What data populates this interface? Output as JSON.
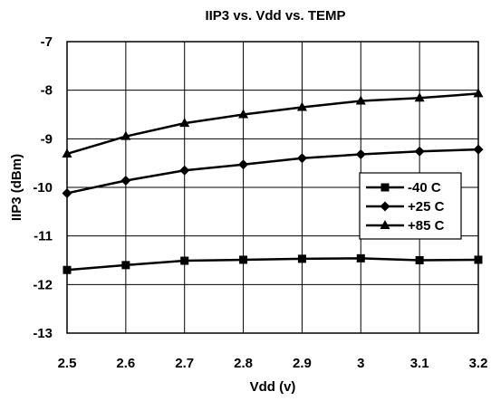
{
  "chart_data": {
    "type": "line",
    "title": "IIP3 vs. Vdd vs. TEMP",
    "xlabel": "Vdd (v)",
    "ylabel": "IIP3 (dBm)",
    "xlim": [
      2.5,
      3.2
    ],
    "ylim": [
      -13,
      -7
    ],
    "x_ticks": [
      "2.5",
      "2.6",
      "2.7",
      "2.8",
      "2.9",
      "3",
      "3.1",
      "3.2"
    ],
    "y_ticks": [
      "-7",
      "-8",
      "-9",
      "-10",
      "-11",
      "-12",
      "-13"
    ],
    "grid": true,
    "legend_position": "right",
    "x": [
      2.5,
      2.6,
      2.7,
      2.8,
      2.9,
      3.0,
      3.1,
      3.2
    ],
    "series": [
      {
        "name": "-40 C",
        "marker": "square",
        "values": [
          -11.7,
          -11.6,
          -11.51,
          -11.49,
          -11.47,
          -11.46,
          -11.5,
          -11.49
        ]
      },
      {
        "name": "+25 C",
        "marker": "diamond",
        "values": [
          -10.12,
          -9.86,
          -9.65,
          -9.53,
          -9.4,
          -9.32,
          -9.26,
          -9.22
        ]
      },
      {
        "name": "+85 C",
        "marker": "triangle",
        "values": [
          -9.31,
          -8.95,
          -8.68,
          -8.5,
          -8.35,
          -8.22,
          -8.16,
          -8.07
        ]
      }
    ],
    "colors": {
      "line": "#000000",
      "grid": "#000000",
      "background": "#ffffff"
    }
  }
}
